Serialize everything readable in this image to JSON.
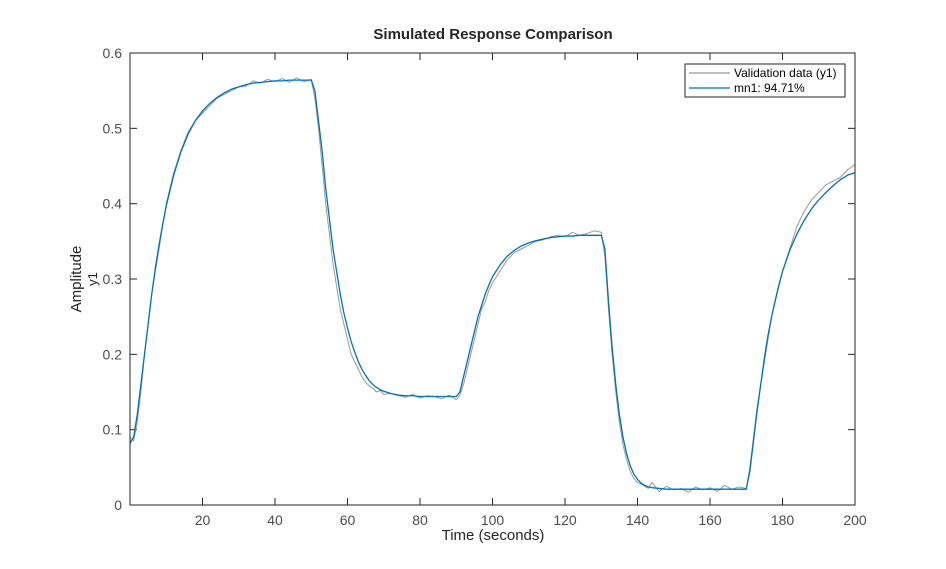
{
  "chart_data": {
    "type": "line",
    "title": "Simulated Response Comparison",
    "xlabel": "Time (seconds)",
    "ylabel": "Amplitude",
    "ylabel_sub": "y1",
    "xlim": [
      0,
      200
    ],
    "ylim": [
      0,
      0.6
    ],
    "xticks": [
      20,
      40,
      60,
      80,
      100,
      120,
      140,
      160,
      180,
      200
    ],
    "yticks": [
      0,
      0.1,
      0.2,
      0.3,
      0.4,
      0.5,
      0.6
    ],
    "xtick_labels": [
      "20",
      "40",
      "60",
      "80",
      "100",
      "120",
      "140",
      "160",
      "180",
      "200"
    ],
    "ytick_labels": [
      "0",
      "0.1",
      "0.2",
      "0.3",
      "0.4",
      "0.5",
      "0.6"
    ],
    "grid": false,
    "legend_position": "top-right",
    "series": [
      {
        "name": "Validation data (y1)",
        "color": "#999999",
        "x": [
          0,
          1,
          2,
          3,
          4,
          5,
          6,
          7,
          8,
          9,
          10,
          12,
          14,
          16,
          18,
          20,
          22,
          24,
          26,
          28,
          30,
          32,
          34,
          36,
          38,
          40,
          42,
          44,
          46,
          48,
          50,
          51,
          52,
          53,
          54,
          55,
          56,
          57,
          58,
          59,
          60,
          61,
          62,
          63,
          64,
          65,
          66,
          67,
          68,
          69,
          70,
          72,
          74,
          76,
          78,
          80,
          82,
          84,
          86,
          88,
          90,
          91,
          92,
          93,
          94,
          95,
          96,
          97,
          98,
          99,
          100,
          102,
          104,
          106,
          108,
          110,
          112,
          114,
          116,
          118,
          120,
          122,
          124,
          126,
          128,
          130,
          131,
          132,
          133,
          134,
          135,
          136,
          137,
          138,
          139,
          140,
          141,
          142,
          143,
          144,
          146,
          148,
          150,
          152,
          154,
          156,
          158,
          160,
          162,
          164,
          166,
          168,
          170,
          171,
          172,
          173,
          174,
          175,
          176,
          177,
          178,
          179,
          180,
          182,
          184,
          186,
          188,
          190,
          192,
          194,
          196,
          198,
          200
        ],
        "y": [
          0.09,
          0.085,
          0.11,
          0.15,
          0.2,
          0.24,
          0.28,
          0.31,
          0.34,
          0.37,
          0.4,
          0.44,
          0.47,
          0.495,
          0.51,
          0.52,
          0.53,
          0.54,
          0.545,
          0.55,
          0.555,
          0.556,
          0.563,
          0.56,
          0.565,
          0.562,
          0.566,
          0.561,
          0.567,
          0.562,
          0.565,
          0.54,
          0.5,
          0.45,
          0.4,
          0.36,
          0.32,
          0.29,
          0.26,
          0.24,
          0.22,
          0.2,
          0.19,
          0.18,
          0.17,
          0.163,
          0.158,
          0.155,
          0.15,
          0.152,
          0.147,
          0.148,
          0.145,
          0.143,
          0.147,
          0.142,
          0.145,
          0.144,
          0.141,
          0.146,
          0.14,
          0.146,
          0.16,
          0.18,
          0.2,
          0.22,
          0.24,
          0.26,
          0.27,
          0.285,
          0.295,
          0.31,
          0.325,
          0.335,
          0.34,
          0.345,
          0.35,
          0.352,
          0.356,
          0.358,
          0.356,
          0.362,
          0.358,
          0.36,
          0.364,
          0.362,
          0.33,
          0.26,
          0.2,
          0.15,
          0.11,
          0.08,
          0.06,
          0.045,
          0.035,
          0.03,
          0.028,
          0.025,
          0.022,
          0.03,
          0.018,
          0.025,
          0.02,
          0.022,
          0.017,
          0.024,
          0.02,
          0.023,
          0.018,
          0.026,
          0.021,
          0.024,
          0.022,
          0.05,
          0.09,
          0.13,
          0.16,
          0.19,
          0.22,
          0.25,
          0.27,
          0.29,
          0.31,
          0.34,
          0.37,
          0.39,
          0.405,
          0.415,
          0.425,
          0.43,
          0.435,
          0.445,
          0.452
        ]
      },
      {
        "name": "mn1: 94.71%",
        "color": "#0072bd",
        "x": [
          0,
          1,
          2,
          3,
          4,
          5,
          6,
          7,
          8,
          9,
          10,
          12,
          14,
          16,
          18,
          20,
          22,
          24,
          26,
          28,
          30,
          32,
          34,
          36,
          38,
          40,
          42,
          44,
          46,
          48,
          50,
          51,
          52,
          53,
          54,
          55,
          56,
          57,
          58,
          59,
          60,
          61,
          62,
          63,
          64,
          65,
          66,
          67,
          68,
          69,
          70,
          72,
          74,
          76,
          78,
          80,
          82,
          84,
          86,
          88,
          90,
          91,
          92,
          93,
          94,
          95,
          96,
          97,
          98,
          99,
          100,
          102,
          104,
          106,
          108,
          110,
          112,
          114,
          116,
          118,
          120,
          122,
          124,
          126,
          128,
          130,
          131,
          132,
          133,
          134,
          135,
          136,
          137,
          138,
          139,
          140,
          141,
          142,
          143,
          144,
          146,
          148,
          150,
          152,
          154,
          156,
          158,
          160,
          162,
          164,
          166,
          168,
          170,
          171,
          172,
          173,
          174,
          175,
          176,
          177,
          178,
          179,
          180,
          182,
          184,
          186,
          188,
          190,
          192,
          194,
          196,
          198,
          200
        ],
        "y": [
          0.082,
          0.09,
          0.12,
          0.16,
          0.2,
          0.24,
          0.28,
          0.315,
          0.345,
          0.372,
          0.397,
          0.437,
          0.468,
          0.492,
          0.51,
          0.523,
          0.533,
          0.541,
          0.547,
          0.552,
          0.555,
          0.558,
          0.56,
          0.561,
          0.562,
          0.563,
          0.563,
          0.564,
          0.564,
          0.564,
          0.564,
          0.55,
          0.51,
          0.47,
          0.42,
          0.38,
          0.34,
          0.31,
          0.28,
          0.255,
          0.235,
          0.217,
          0.203,
          0.19,
          0.18,
          0.172,
          0.165,
          0.16,
          0.156,
          0.153,
          0.151,
          0.148,
          0.146,
          0.145,
          0.145,
          0.144,
          0.144,
          0.144,
          0.144,
          0.144,
          0.144,
          0.15,
          0.17,
          0.19,
          0.21,
          0.23,
          0.25,
          0.265,
          0.28,
          0.292,
          0.303,
          0.318,
          0.33,
          0.338,
          0.344,
          0.348,
          0.351,
          0.353,
          0.355,
          0.356,
          0.357,
          0.357,
          0.358,
          0.358,
          0.358,
          0.358,
          0.34,
          0.27,
          0.21,
          0.16,
          0.12,
          0.09,
          0.068,
          0.052,
          0.041,
          0.034,
          0.029,
          0.026,
          0.024,
          0.023,
          0.022,
          0.021,
          0.021,
          0.021,
          0.021,
          0.021,
          0.021,
          0.021,
          0.021,
          0.021,
          0.021,
          0.021,
          0.021,
          0.045,
          0.085,
          0.125,
          0.16,
          0.195,
          0.225,
          0.25,
          0.272,
          0.292,
          0.31,
          0.338,
          0.36,
          0.378,
          0.393,
          0.405,
          0.415,
          0.424,
          0.432,
          0.438,
          0.441
        ]
      }
    ]
  }
}
